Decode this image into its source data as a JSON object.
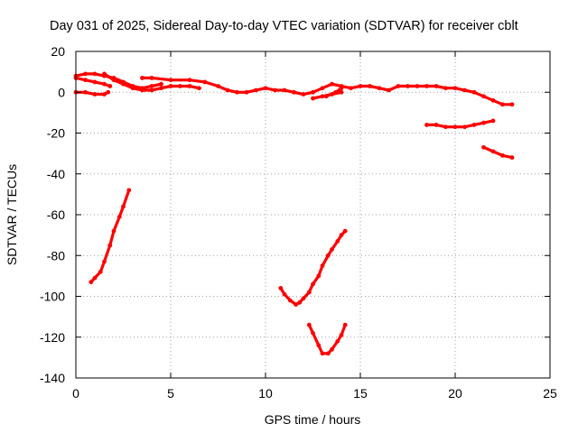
{
  "chart_data": {
    "type": "scatter",
    "title": "Day 031 of 2025, Sidereal Day-to-day VTEC variation (SDTVAR) for receiver cblt",
    "xlabel": "GPS time / hours",
    "ylabel": "SDTVAR / TECUs",
    "xlim": [
      0,
      25
    ],
    "ylim": [
      -140,
      20
    ],
    "xticks": [
      0,
      5,
      10,
      15,
      20,
      25
    ],
    "yticks": [
      20,
      0,
      -20,
      -40,
      -60,
      -80,
      -100,
      -120,
      -140
    ],
    "grid": true,
    "marker_color": "#ff0000",
    "series": [
      {
        "x": [
          0.0,
          0.5,
          1.0,
          1.5,
          2.0,
          2.5,
          3.0,
          3.5,
          4.0,
          4.5
        ],
        "y": [
          8,
          9,
          9,
          8,
          7,
          5,
          3,
          2,
          3,
          4
        ]
      },
      {
        "x": [
          0.0,
          0.5,
          1.0,
          1.5,
          1.8
        ],
        "y": [
          7,
          6,
          5,
          4,
          3
        ]
      },
      {
        "x": [
          1.5,
          2.0,
          2.5,
          3.0,
          3.5,
          4.0,
          4.5,
          5.0,
          5.5,
          6.0,
          6.5
        ],
        "y": [
          9,
          6,
          4,
          2,
          1,
          1,
          2,
          3,
          3,
          3,
          2
        ]
      },
      {
        "x": [
          0.0,
          0.5,
          1.0,
          1.5,
          1.7
        ],
        "y": [
          0,
          0,
          -1,
          -1,
          0
        ]
      },
      {
        "x": [
          3.5,
          4.0,
          5.0,
          6.0,
          6.8,
          7.5,
          8.0,
          8.5,
          9.0,
          9.5,
          10.0,
          10.5,
          11.0,
          11.5,
          12.0,
          12.5,
          13.0,
          13.5,
          14.0,
          14.5,
          15.0,
          15.5,
          16.0,
          16.5,
          17.0,
          17.5,
          18.0,
          18.5,
          19.0,
          19.5,
          20.0,
          20.5,
          21.0,
          21.5,
          22.0,
          22.5,
          23.0
        ],
        "y": [
          7,
          7,
          6,
          6,
          5,
          3,
          1,
          0,
          0,
          1,
          2,
          1,
          1,
          0,
          -1,
          0,
          2,
          4,
          3,
          2,
          3,
          3,
          2,
          1,
          3,
          3,
          3,
          3,
          3,
          2,
          2,
          1,
          0,
          -2,
          -4,
          -6,
          -6
        ]
      },
      {
        "x": [
          12.5,
          13.0,
          13.5,
          14.0
        ],
        "y": [
          -3,
          -2,
          -1,
          0
        ]
      },
      {
        "x": [
          13.2,
          13.7,
          14.0
        ],
        "y": [
          -2,
          0,
          2
        ]
      },
      {
        "x": [
          18.5,
          19.0,
          19.5,
          20.0,
          20.5,
          21.0,
          21.5,
          22.0
        ],
        "y": [
          -16,
          -16,
          -17,
          -17,
          -17,
          -16,
          -15,
          -14
        ]
      },
      {
        "x": [
          21.5,
          22.0,
          22.5,
          23.0
        ],
        "y": [
          -27,
          -29,
          -31,
          -32
        ]
      },
      {
        "x": [
          0.8,
          1.0,
          1.3,
          1.5,
          1.8,
          2.0,
          2.3,
          2.5,
          2.8
        ],
        "y": [
          -93,
          -91,
          -88,
          -83,
          -75,
          -68,
          -61,
          -56,
          -48
        ]
      },
      {
        "x": [
          10.8,
          11.0,
          11.3,
          11.6,
          11.8,
          12.0,
          12.3,
          12.5,
          12.8,
          13.0,
          13.3,
          13.5,
          13.8,
          14.0,
          14.2
        ],
        "y": [
          -96,
          -99,
          -102,
          -104,
          -103,
          -101,
          -98,
          -94,
          -90,
          -85,
          -80,
          -77,
          -73,
          -70,
          -68
        ]
      },
      {
        "x": [
          12.3,
          12.5,
          12.8,
          13.0,
          13.3,
          13.5,
          13.8,
          14.0,
          14.2
        ],
        "y": [
          -114,
          -118,
          -124,
          -128,
          -128,
          -126,
          -122,
          -119,
          -114
        ]
      }
    ]
  }
}
